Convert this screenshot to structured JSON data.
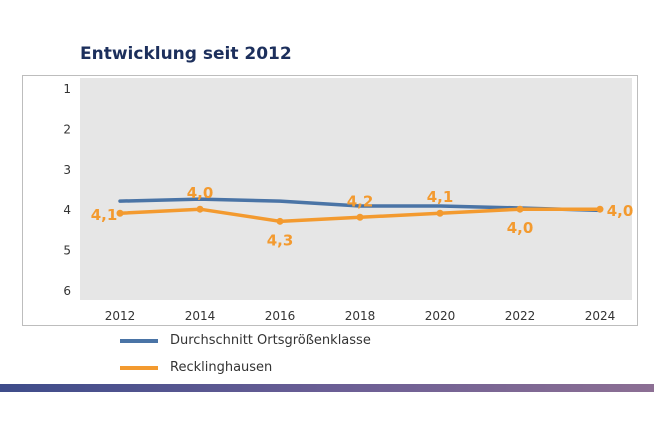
{
  "title": "Entwicklung seit 2012",
  "chart_data": {
    "type": "line",
    "categories": [
      "2012",
      "2014",
      "2016",
      "2018",
      "2020",
      "2022",
      "2024"
    ],
    "ylim": [
      1,
      6
    ],
    "y_inverted": true,
    "yticks": [
      "1",
      "2",
      "3",
      "4",
      "5",
      "6"
    ],
    "grid": false,
    "legend_position": "bottom-left",
    "series": [
      {
        "name": "Durchschnitt Ortsgrößenklasse",
        "color": "#4a74a6",
        "values": [
          3.8,
          3.75,
          3.8,
          3.92,
          3.92,
          3.97,
          4.03
        ],
        "labels": []
      },
      {
        "name": "Recklinghausen",
        "color": "#f39a2f",
        "values": [
          4.1,
          4.0,
          4.3,
          4.2,
          4.1,
          4.0,
          4.0
        ],
        "labels": [
          "4,1",
          "4,0",
          "4,3",
          "4,2",
          "4,1",
          "4,0",
          "4,0"
        ]
      }
    ]
  }
}
